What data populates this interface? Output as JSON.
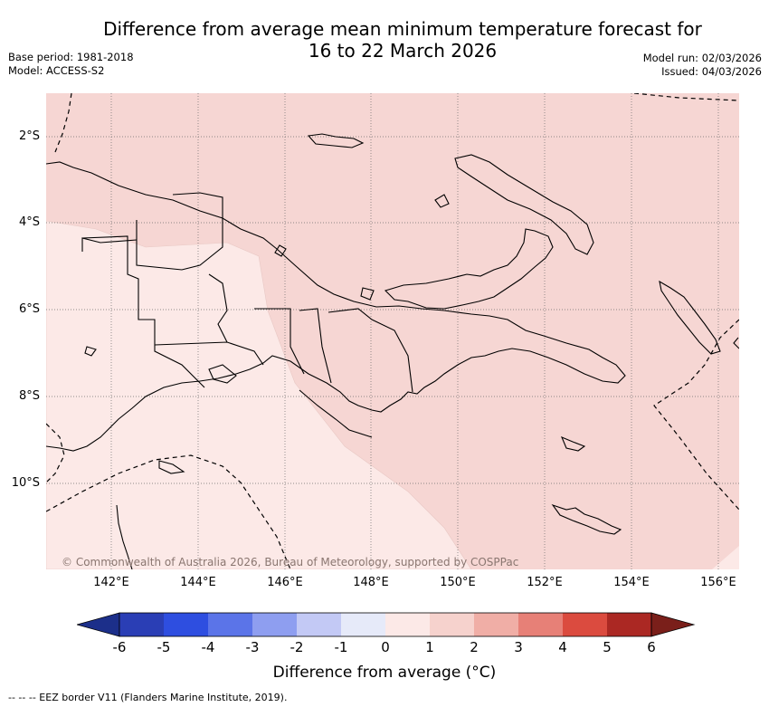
{
  "title": {
    "line1": "Difference from average mean minimum temperature forecast for",
    "line2": "16 to 22 March 2026"
  },
  "meta": {
    "base_period": "Base period: 1981-2018",
    "model": "Model: ACCESS-S2",
    "model_run": "Model run: 02/03/2026",
    "issued": "Issued: 04/03/2026"
  },
  "map": {
    "lat_labels": [
      "2°S",
      "4°S",
      "6°S",
      "8°S",
      "10°S"
    ],
    "lon_labels": [
      "142°E",
      "144°E",
      "146°E",
      "148°E",
      "150°E",
      "152°E",
      "154°E",
      "156°E"
    ],
    "copyright": "© Commonwealth of Australia 2026, Bureau of Meteorology, supported by COSPPac",
    "colors": {
      "category_1_to_2": "#f6d6d3",
      "category_0_to_1": "#fce9e7",
      "coastline": "#000000"
    }
  },
  "colorbar": {
    "label": "Difference from average (°C)",
    "ticks": [
      "-6",
      "-5",
      "-4",
      "-3",
      "-2",
      "-1",
      "0",
      "1",
      "2",
      "3",
      "4",
      "5",
      "6"
    ],
    "colors": [
      "#1c2f8a",
      "#2a3eb5",
      "#2e4ee0",
      "#5b74e8",
      "#8e9ef0",
      "#c3c9f5",
      "#e6eaf9",
      "#fce9e7",
      "#f6d2cd",
      "#f0aea6",
      "#e78077",
      "#db4b3f",
      "#ab2823",
      "#7a1f1a"
    ]
  },
  "footer": {
    "eez_note": "--  --  -- EEZ border V11 (Flanders Marine Institute, 2019)."
  }
}
